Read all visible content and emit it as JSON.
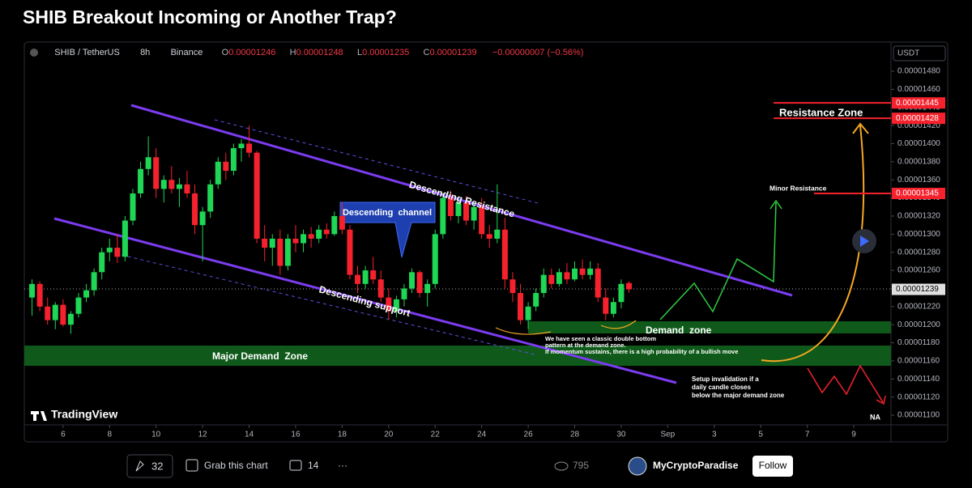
{
  "title": "SHIB Breakout Incoming or Another Trap?",
  "header": {
    "symbol": "SHIB / TetherUS",
    "interval": "8h",
    "exchange": "Binance",
    "open_label": "O",
    "open": "0.00001246",
    "high_label": "H",
    "high": "0.00001248",
    "low_label": "L",
    "low": "0.00001235",
    "close_label": "C",
    "close": "0.00001239",
    "change": "−0.00000007 (−0.56%)"
  },
  "chart_data": {
    "type": "candlestick",
    "currency": "USDT",
    "brand": "TradingView",
    "up_color": "#1fd655",
    "down_color": "#f5222d",
    "open": [
      1.23e-05,
      1.245e-05,
      1.22e-05,
      1.205e-05,
      1.222e-05,
      1.2e-05,
      1.212e-05,
      1.23e-05,
      1.238e-05,
      1.258e-05,
      1.28e-05,
      1.285e-05,
      1.275e-05,
      1.315e-05,
      1.345e-05,
      1.372e-05,
      1.385e-05,
      1.35e-05,
      1.36e-05,
      1.35e-05,
      1.355e-05,
      1.345e-05,
      1.31e-05,
      1.325e-05,
      1.355e-05,
      1.38e-05,
      1.37e-05,
      1.395e-05,
      1.4e-05,
      1.39e-05,
      1.295e-05,
      1.285e-05,
      1.295e-05,
      1.265e-05,
      1.295e-05,
      1.29e-05,
      1.3e-05,
      1.295e-05,
      1.305e-05,
      1.3e-05,
      1.32e-05,
      1.305e-05,
      1.255e-05,
      1.245e-05,
      1.26e-05,
      1.25e-05,
      1.23e-05,
      1.215e-05,
      1.228e-05,
      1.24e-05,
      1.258e-05,
      1.235e-05,
      1.245e-05,
      1.3e-05,
      1.34e-05,
      1.32e-05,
      1.335e-05,
      1.315e-05,
      1.33e-05,
      1.3e-05,
      1.295e-05,
      1.305e-05,
      1.25e-05,
      1.235e-05,
      1.205e-05,
      1.22e-05,
      1.235e-05,
      1.255e-05,
      1.245e-05,
      1.258e-05,
      1.25e-05,
      1.262e-05,
      1.255e-05,
      1.262e-05,
      1.23e-05,
      1.212e-05,
      1.225e-05,
      1.246e-05
    ],
    "high": [
      1.25e-05,
      1.248e-05,
      1.23e-05,
      1.225e-05,
      1.228e-05,
      1.215e-05,
      1.235e-05,
      1.245e-05,
      1.262e-05,
      1.285e-05,
      1.295e-05,
      1.3e-05,
      1.32e-05,
      1.35e-05,
      1.38e-05,
      1.408e-05,
      1.395e-05,
      1.365e-05,
      1.375e-05,
      1.362e-05,
      1.37e-05,
      1.355e-05,
      1.33e-05,
      1.36e-05,
      1.385e-05,
      1.39e-05,
      1.4e-05,
      1.405e-05,
      1.42e-05,
      1.392e-05,
      1.31e-05,
      1.3e-05,
      1.305e-05,
      1.3e-05,
      1.31e-05,
      1.305e-05,
      1.308e-05,
      1.31e-05,
      1.312e-05,
      1.325e-05,
      1.335e-05,
      1.31e-05,
      1.265e-05,
      1.265e-05,
      1.275e-05,
      1.26e-05,
      1.24e-05,
      1.232e-05,
      1.245e-05,
      1.262e-05,
      1.26e-05,
      1.25e-05,
      1.305e-05,
      1.345e-05,
      1.348e-05,
      1.34e-05,
      1.342e-05,
      1.335e-05,
      1.34e-05,
      1.31e-05,
      1.355e-05,
      1.318e-05,
      1.258e-05,
      1.245e-05,
      1.225e-05,
      1.24e-05,
      1.262e-05,
      1.262e-05,
      1.262e-05,
      1.268e-05,
      1.27e-05,
      1.272e-05,
      1.27e-05,
      1.268e-05,
      1.24e-05,
      1.23e-05,
      1.25e-05,
      1.248e-05
    ],
    "low": [
      1.21e-05,
      1.215e-05,
      1.2e-05,
      1.195e-05,
      1.198e-05,
      1.19e-05,
      1.208e-05,
      1.225e-05,
      1.232e-05,
      1.25e-05,
      1.27e-05,
      1.268e-05,
      1.27e-05,
      1.31e-05,
      1.34e-05,
      1.365e-05,
      1.34e-05,
      1.335e-05,
      1.345e-05,
      1.33e-05,
      1.34e-05,
      1.3e-05,
      1.27e-05,
      1.318e-05,
      1.35e-05,
      1.36e-05,
      1.365e-05,
      1.38e-05,
      1.385e-05,
      1.29e-05,
      1.27e-05,
      1.265e-05,
      1.255e-05,
      1.26e-05,
      1.28e-05,
      1.28e-05,
      1.285e-05,
      1.29e-05,
      1.295e-05,
      1.298e-05,
      1.3e-05,
      1.25e-05,
      1.235e-05,
      1.24e-05,
      1.245e-05,
      1.225e-05,
      1.205e-05,
      1.208e-05,
      1.22e-05,
      1.235e-05,
      1.23e-05,
      1.22e-05,
      1.24e-05,
      1.295e-05,
      1.315e-05,
      1.312e-05,
      1.31e-05,
      1.305e-05,
      1.295e-05,
      1.285e-05,
      1.29e-05,
      1.24e-05,
      1.225e-05,
      1.2e-05,
      1.195e-05,
      1.215e-05,
      1.23e-05,
      1.24e-05,
      1.242e-05,
      1.245e-05,
      1.248e-05,
      1.25e-05,
      1.25e-05,
      1.225e-05,
      1.205e-05,
      1.208e-05,
      1.218e-05,
      1.235e-05
    ],
    "close": [
      1.245e-05,
      1.22e-05,
      1.205e-05,
      1.222e-05,
      1.2e-05,
      1.212e-05,
      1.23e-05,
      1.238e-05,
      1.258e-05,
      1.28e-05,
      1.285e-05,
      1.275e-05,
      1.315e-05,
      1.345e-05,
      1.372e-05,
      1.385e-05,
      1.35e-05,
      1.36e-05,
      1.35e-05,
      1.355e-05,
      1.345e-05,
      1.31e-05,
      1.325e-05,
      1.355e-05,
      1.38e-05,
      1.37e-05,
      1.395e-05,
      1.4e-05,
      1.39e-05,
      1.295e-05,
      1.285e-05,
      1.295e-05,
      1.265e-05,
      1.295e-05,
      1.29e-05,
      1.3e-05,
      1.295e-05,
      1.305e-05,
      1.3e-05,
      1.32e-05,
      1.305e-05,
      1.255e-05,
      1.245e-05,
      1.26e-05,
      1.25e-05,
      1.23e-05,
      1.215e-05,
      1.228e-05,
      1.24e-05,
      1.258e-05,
      1.235e-05,
      1.245e-05,
      1.3e-05,
      1.34e-05,
      1.32e-05,
      1.335e-05,
      1.315e-05,
      1.33e-05,
      1.3e-05,
      1.295e-05,
      1.305e-05,
      1.25e-05,
      1.235e-05,
      1.205e-05,
      1.22e-05,
      1.235e-05,
      1.255e-05,
      1.245e-05,
      1.258e-05,
      1.25e-05,
      1.262e-05,
      1.255e-05,
      1.262e-05,
      1.23e-05,
      1.212e-05,
      1.225e-05,
      1.245e-05,
      1.239e-05
    ],
    "xlim": [
      -1,
      110.8
    ],
    "xticks": [
      {
        "value": 4,
        "label": "6"
      },
      {
        "value": 10,
        "label": "8"
      },
      {
        "value": 16,
        "label": "10"
      },
      {
        "value": 22,
        "label": "12"
      },
      {
        "value": 28,
        "label": "14"
      },
      {
        "value": 34,
        "label": "16"
      },
      {
        "value": 40,
        "label": "18"
      },
      {
        "value": 46,
        "label": "20"
      },
      {
        "value": 52,
        "label": "22"
      },
      {
        "value": 58,
        "label": "24"
      },
      {
        "value": 64,
        "label": "26"
      },
      {
        "value": 70,
        "label": "28"
      },
      {
        "value": 76,
        "label": "30"
      },
      {
        "value": 82,
        "label": "Sep"
      },
      {
        "value": 88,
        "label": "3"
      },
      {
        "value": 94,
        "label": "5"
      },
      {
        "value": 100,
        "label": "7"
      },
      {
        "value": 106,
        "label": "9"
      }
    ],
    "ylim": [
      1.0893e-05,
      1.5122e-05
    ],
    "yticks": [
      {
        "value": 1.1e-05,
        "label": "0.00001100"
      },
      {
        "value": 1.12e-05,
        "label": "0.00001120"
      },
      {
        "value": 1.14e-05,
        "label": "0.00001140"
      },
      {
        "value": 1.16e-05,
        "label": "0.00001160"
      },
      {
        "value": 1.18e-05,
        "label": "0.00001180"
      },
      {
        "value": 1.2e-05,
        "label": "0.00001200"
      },
      {
        "value": 1.22e-05,
        "label": "0.00001220"
      },
      {
        "value": 1.24e-05,
        "label": "0.00001240"
      },
      {
        "value": 1.26e-05,
        "label": "0.00001260"
      },
      {
        "value": 1.28e-05,
        "label": "0.00001280"
      },
      {
        "value": 1.3e-05,
        "label": "0.00001300"
      },
      {
        "value": 1.32e-05,
        "label": "0.00001320"
      },
      {
        "value": 1.34e-05,
        "label": "0.00001340"
      },
      {
        "value": 1.36e-05,
        "label": "0.00001360"
      },
      {
        "value": 1.38e-05,
        "label": "0.00001380"
      },
      {
        "value": 1.4e-05,
        "label": "0.00001400"
      },
      {
        "value": 1.42e-05,
        "label": "0.00001420"
      },
      {
        "value": 1.44e-05,
        "label": "0.00001440"
      },
      {
        "value": 1.46e-05,
        "label": "0.00001460"
      },
      {
        "value": 1.48e-05,
        "label": "0.00001480"
      }
    ],
    "last_price": 1.239e-05,
    "last_price_label": "0.00001239",
    "levels": [
      1.445e-05,
      1.428e-05,
      1.345e-05
    ],
    "level_labels": [
      "0.00001445",
      "0.00001428",
      "0.00001345"
    ],
    "annotations": {
      "resistance_zone": "Resistance Zone",
      "minor_resistance": "Minor Resistance",
      "descending_resistance": "Descending Resistance",
      "descending_channel": "Descending  channel",
      "descending_support": "Descending support",
      "demand_zone": "Demand  zone",
      "major_demand_zone": "Major Demand  Zone",
      "note": [
        "We have seen a classic double bottom",
        "pattern at the demand zone.",
        "If momentum sustains, there is a high probability of a bullish move"
      ],
      "invalidation": [
        "Setup invalidation if a",
        "daily candle closes",
        "below the major demand zone"
      ],
      "na": "NA"
    }
  },
  "footer": {
    "boosts": "32",
    "grab": "Grab this chart",
    "comments": "14",
    "more": "···",
    "views": "795",
    "author": "MyCryptoParadise",
    "follow": "Follow"
  }
}
